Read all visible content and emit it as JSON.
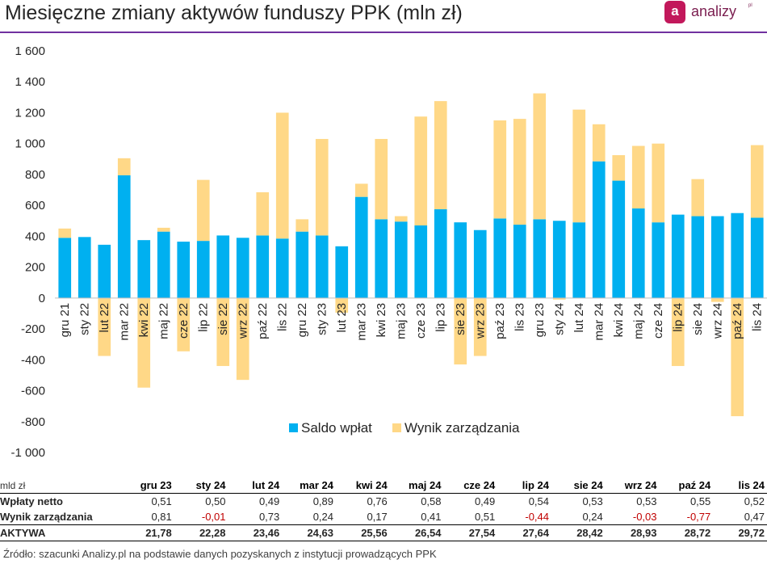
{
  "title": "Miesięczne zmiany aktywów funduszy PPK (mln zł)",
  "logo": {
    "mark": "a",
    "text": "analizy",
    "sup": "pl"
  },
  "colors": {
    "saldo": "#00b0f0",
    "wynik": "#ffd887",
    "rule": "#7030a0",
    "negative": "#c00000"
  },
  "chart_data": {
    "type": "bar",
    "stacked": true,
    "categories": [
      "gru 21",
      "sty 22",
      "lut 22",
      "mar 22",
      "kwi 22",
      "maj 22",
      "cze 22",
      "lip 22",
      "sie 22",
      "wrz 22",
      "paź 22",
      "lis 22",
      "gru 22",
      "sty 23",
      "lut 23",
      "mar 23",
      "kwi 23",
      "maj 23",
      "cze 23",
      "lip 23",
      "sie 23",
      "wrz 23",
      "paź 23",
      "lis 23",
      "gru 23",
      "sty 24",
      "lut 24",
      "mar 24",
      "kwi 24",
      "maj 24",
      "cze 24",
      "lip 24",
      "sie 24",
      "wrz 24",
      "paź 24",
      "lis 24"
    ],
    "series": [
      {
        "name": "Saldo wpłat",
        "values": [
          390,
          395,
          345,
          795,
          375,
          430,
          365,
          370,
          405,
          390,
          405,
          385,
          430,
          405,
          335,
          655,
          510,
          495,
          470,
          575,
          490,
          440,
          515,
          475,
          510,
          500,
          490,
          885,
          760,
          580,
          490,
          540,
          530,
          530,
          550,
          520
        ]
      },
      {
        "name": "Wynik zarządzania",
        "values": [
          60,
          0,
          -375,
          110,
          -580,
          25,
          -345,
          395,
          -440,
          -530,
          280,
          815,
          80,
          625,
          -95,
          85,
          520,
          35,
          705,
          700,
          -430,
          -375,
          635,
          685,
          815,
          -10,
          730,
          240,
          165,
          405,
          510,
          -440,
          240,
          -25,
          -765,
          470
        ]
      }
    ],
    "ylim": [
      -1000,
      1600
    ],
    "yticks": [
      -1000,
      -800,
      -600,
      -400,
      -200,
      0,
      200,
      400,
      600,
      800,
      1000,
      1200,
      1400,
      1600
    ],
    "ytick_labels": [
      "-1 000",
      "-800",
      "-600",
      "-400",
      "-200",
      "0",
      "200",
      "400",
      "600",
      "800",
      "1 000",
      "1 200",
      "1 400",
      "1 600"
    ],
    "legend_position": "bottom-center",
    "grid": false
  },
  "table": {
    "unit_label": "mld zł",
    "columns": [
      "gru 23",
      "sty 24",
      "lut 24",
      "mar 24",
      "kwi 24",
      "maj 24",
      "cze 24",
      "lip 24",
      "sie 24",
      "wrz 24",
      "paź 24",
      "lis 24"
    ],
    "rows": [
      {
        "label": "Wpłaty netto",
        "values": [
          "0,51",
          "0,50",
          "0,49",
          "0,89",
          "0,76",
          "0,58",
          "0,49",
          "0,54",
          "0,53",
          "0,53",
          "0,55",
          "0,52"
        ]
      },
      {
        "label": "Wynik zarządzania",
        "values": [
          "0,81",
          "-0,01",
          "0,73",
          "0,24",
          "0,17",
          "0,41",
          "0,51",
          "-0,44",
          "0,24",
          "-0,03",
          "-0,77",
          "0,47"
        ]
      },
      {
        "label": "AKTYWA",
        "values": [
          "21,78",
          "22,28",
          "23,46",
          "24,63",
          "25,56",
          "26,54",
          "27,54",
          "27,64",
          "28,42",
          "28,93",
          "28,72",
          "29,72"
        ]
      }
    ]
  },
  "source": "Źródło: szacunki Analizy.pl na podstawie danych pozyskanych z instytucji prowadzących PPK"
}
